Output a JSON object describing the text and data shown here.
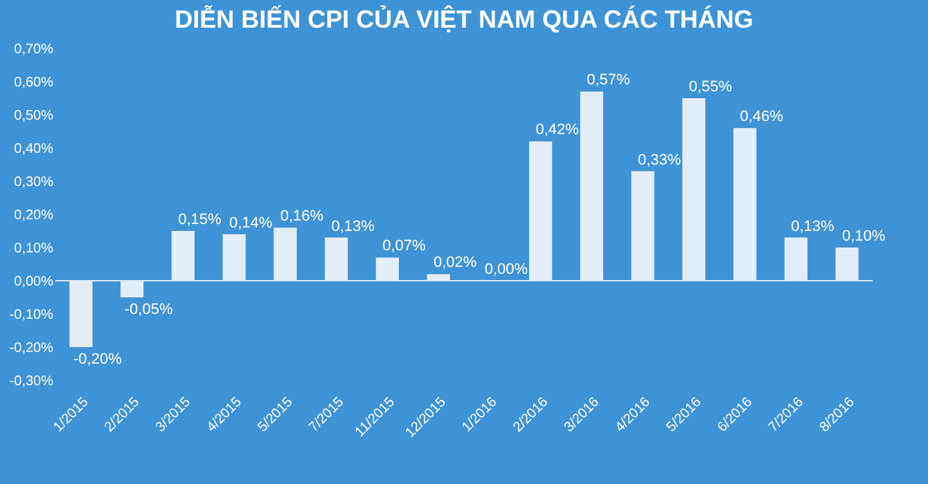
{
  "chart_data": {
    "type": "bar",
    "title": "DIỄN BIẾN CPI CỦA VIỆT NAM QUA CÁC THÁNG",
    "categories": [
      "1/2015",
      "2/2015",
      "3/2015",
      "4/2015",
      "5/2015",
      "7/2015",
      "11/2015",
      "12/2015",
      "1/2016",
      "2/2016",
      "3/2016",
      "4/2016",
      "5/2016",
      "6/2016",
      "7/2016",
      "8/2016"
    ],
    "values": [
      -0.2,
      -0.05,
      0.15,
      0.14,
      0.16,
      0.13,
      0.07,
      0.02,
      0.0,
      0.42,
      0.57,
      0.33,
      0.55,
      0.46,
      0.13,
      0.1
    ],
    "value_labels": [
      "-0,20%",
      "-0,05%",
      "0,15%",
      "0,14%",
      "0,16%",
      "0,13%",
      "0,07%",
      "0,02%",
      "0,00%",
      "0,42%",
      "0,57%",
      "0,33%",
      "0,55%",
      "0,46%",
      "0,13%",
      "0,10%"
    ],
    "color": "#e4eef8",
    "ylim": [
      -0.3,
      0.7
    ],
    "yticks": [
      {
        "value": -0.3,
        "label": "-0,30%"
      },
      {
        "value": -0.2,
        "label": "-0,20%"
      },
      {
        "value": -0.1,
        "label": "-0,10%"
      },
      {
        "value": 0,
        "label": "0,00%"
      },
      {
        "value": 0.1,
        "label": "0,10%"
      },
      {
        "value": 0.2,
        "label": "0,20%"
      },
      {
        "value": 0.3,
        "label": "0,30%"
      },
      {
        "value": 0.4,
        "label": "0,40%"
      },
      {
        "value": 0.5,
        "label": "0,50%"
      },
      {
        "value": 0.6,
        "label": "0,60%"
      },
      {
        "value": 0.7,
        "label": "0,70%"
      }
    ]
  }
}
